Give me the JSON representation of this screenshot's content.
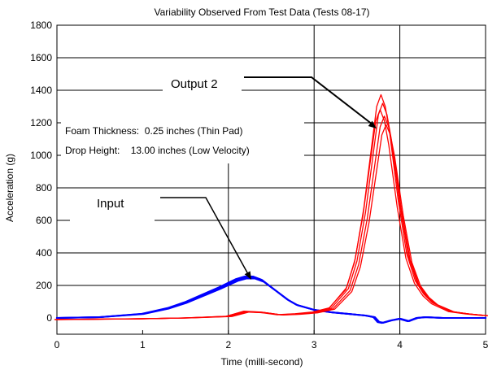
{
  "chart_data": {
    "type": "line",
    "title": "Variability Observed From Test Data (Tests 08-17)",
    "xlabel": "Time (milli-second)",
    "ylabel": "Acceleration (g)",
    "xlim": [
      0,
      5
    ],
    "ylim": [
      -100,
      1800
    ],
    "xticks": [
      0,
      1,
      2,
      3,
      4,
      5
    ],
    "yticks": [
      0,
      200,
      400,
      600,
      800,
      1000,
      1200,
      1400,
      1600,
      1800
    ],
    "grid": "horizontal lines plus vertical lines at x=2, x=3, x=4",
    "colors": {
      "input": "#0000ff",
      "output": "#ff0000",
      "axes": "#000000"
    },
    "annotations": {
      "output_label": "Output 2",
      "input_label": "Input",
      "foam_line": "Foam Thickness:  0.25 inches (Thin Pad)",
      "drop_line": "Drop Height:    13.00 inches (Low Velocity)"
    },
    "series": [
      {
        "color": "#0000ff",
        "x": [
          0,
          0.5,
          1.0,
          1.3,
          1.5,
          1.7,
          1.9,
          2.0,
          2.1,
          2.2,
          2.3,
          2.4,
          2.5,
          2.6,
          2.7,
          2.8,
          3.0,
          3.2,
          3.4,
          3.6,
          3.7,
          3.75,
          3.8,
          3.9,
          4.0,
          4.1,
          4.2,
          4.3,
          4.5,
          5.0
        ],
        "y": [
          0,
          5,
          25,
          60,
          95,
          140,
          185,
          210,
          235,
          250,
          250,
          230,
          190,
          150,
          110,
          80,
          50,
          35,
          25,
          15,
          5,
          -25,
          -30,
          -15,
          -5,
          -20,
          0,
          5,
          0,
          0
        ]
      },
      {
        "color": "#ff0000",
        "x": [
          0,
          1.0,
          1.5,
          2.0,
          2.2,
          2.4,
          2.6,
          2.8,
          3.0,
          3.2,
          3.4,
          3.5,
          3.6,
          3.7,
          3.75,
          3.8,
          3.85,
          3.9,
          4.0,
          4.1,
          4.2,
          4.3,
          4.4,
          4.6,
          4.8,
          5.0
        ],
        "y": [
          -10,
          -5,
          0,
          10,
          40,
          35,
          20,
          25,
          35,
          60,
          180,
          350,
          650,
          1050,
          1250,
          1320,
          1250,
          1100,
          700,
          380,
          220,
          140,
          90,
          40,
          25,
          15
        ]
      }
    ]
  }
}
